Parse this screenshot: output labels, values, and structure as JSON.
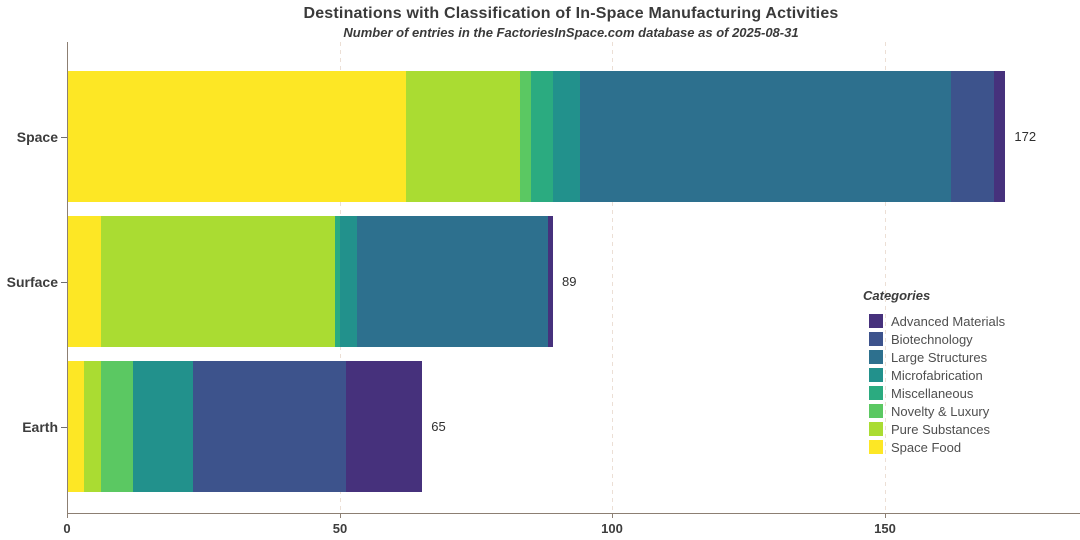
{
  "title": "Destinations with Classification of In-Space Manufacturing Activities",
  "subtitle": "Number of entries in the FactoriesInSpace.com database as of 2025-08-31",
  "legend": {
    "title": "Categories",
    "items": [
      {
        "label": "Advanced Materials",
        "color": "#46317c"
      },
      {
        "label": "Biotechnology",
        "color": "#3d538c"
      },
      {
        "label": "Large Structures",
        "color": "#2d708e"
      },
      {
        "label": "Microfabrication",
        "color": "#22918c"
      },
      {
        "label": "Miscellaneous",
        "color": "#2bab80"
      },
      {
        "label": "Novelty & Luxury",
        "color": "#5bc862"
      },
      {
        "label": "Pure Substances",
        "color": "#aadc32"
      },
      {
        "label": "Space Food",
        "color": "#fde725"
      }
    ]
  },
  "chart_data": {
    "type": "bar",
    "orientation": "horizontal",
    "stacked": true,
    "title": "Destinations with Classification of In-Space Manufacturing Activities",
    "subtitle": "Number of entries in the FactoriesInSpace.com database as of 2025-08-31",
    "categories": [
      "Space",
      "Surface",
      "Earth"
    ],
    "totals": [
      172,
      89,
      65
    ],
    "series": [
      {
        "name": "Space Food",
        "color": "#fde725",
        "values": [
          62,
          6,
          3
        ]
      },
      {
        "name": "Pure Substances",
        "color": "#aadc32",
        "values": [
          21,
          43,
          3
        ]
      },
      {
        "name": "Novelty & Luxury",
        "color": "#5bc862",
        "values": [
          2,
          0,
          6
        ]
      },
      {
        "name": "Miscellaneous",
        "color": "#2bab80",
        "values": [
          4,
          1,
          0
        ]
      },
      {
        "name": "Microfabrication",
        "color": "#22918c",
        "values": [
          5,
          3,
          11
        ]
      },
      {
        "name": "Large Structures",
        "color": "#2d708e",
        "values": [
          68,
          35,
          0
        ]
      },
      {
        "name": "Biotechnology",
        "color": "#3d538c",
        "values": [
          8,
          0,
          28
        ]
      },
      {
        "name": "Advanced Materials",
        "color": "#46317c",
        "values": [
          2,
          1,
          14
        ]
      }
    ],
    "x_ticks": [
      0,
      50,
      100,
      150
    ],
    "xlim": [
      0,
      185
    ],
    "grid": "vertical-dashed-major",
    "legend_position": "right",
    "legend_title": "Categories",
    "axis_color": "#8c7f73",
    "gridline_color": "#ecdfd5"
  }
}
